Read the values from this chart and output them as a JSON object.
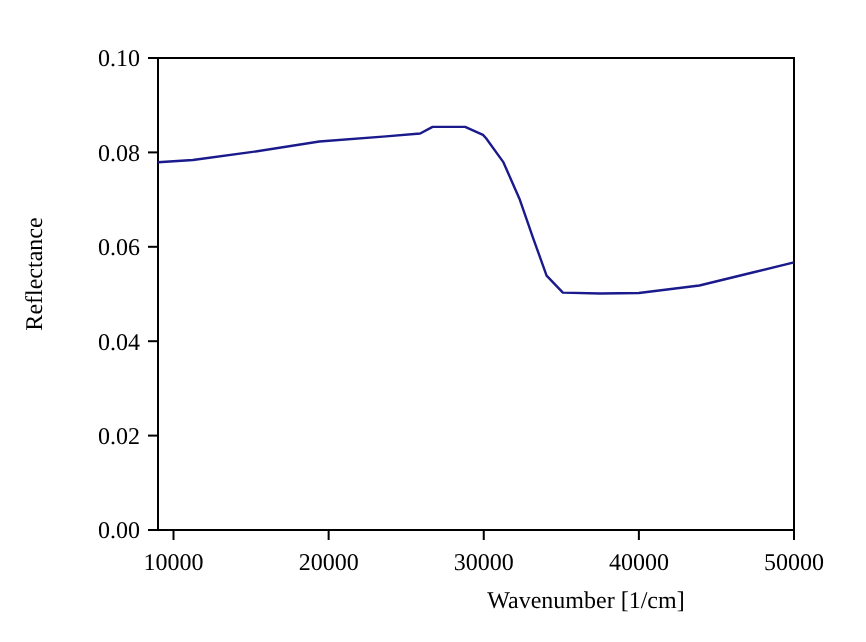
{
  "chart_data": {
    "type": "line",
    "xlabel": "Wavenumber [1/cm]",
    "ylabel": "Reflectance",
    "xlim": [
      9000,
      50000
    ],
    "xticks": [
      10000,
      20000,
      30000,
      40000,
      50000
    ],
    "ylim": [
      0,
      0.1
    ],
    "yticks": [
      {
        "value": 0,
        "label": "0.00"
      },
      {
        "value": 0.02,
        "label": "0.02"
      },
      {
        "value": 0.04,
        "label": "0.04"
      },
      {
        "value": 0.06,
        "label": "0.06"
      },
      {
        "value": 0.08,
        "label": "0.08"
      },
      {
        "value": 0.1,
        "label": "0.10"
      }
    ],
    "marker": "none",
    "line_style": "solid",
    "series": [
      {
        "color": "#1a1a8c",
        "x": [
          9000,
          11250,
          15100,
          19400,
          23700,
          25900,
          26700,
          28800,
          29950,
          30150,
          31250,
          32300,
          33200,
          34050,
          35100,
          37500,
          40000,
          43900,
          47400,
          50000
        ],
        "values": [
          0.0779,
          0.0784,
          0.0801,
          0.0823,
          0.0834,
          0.084,
          0.0854,
          0.0854,
          0.0837,
          0.083,
          0.078,
          0.0702,
          0.0617,
          0.0539,
          0.0503,
          0.0501,
          0.0502,
          0.0518,
          0.0546,
          0.0567
        ]
      }
    ]
  }
}
